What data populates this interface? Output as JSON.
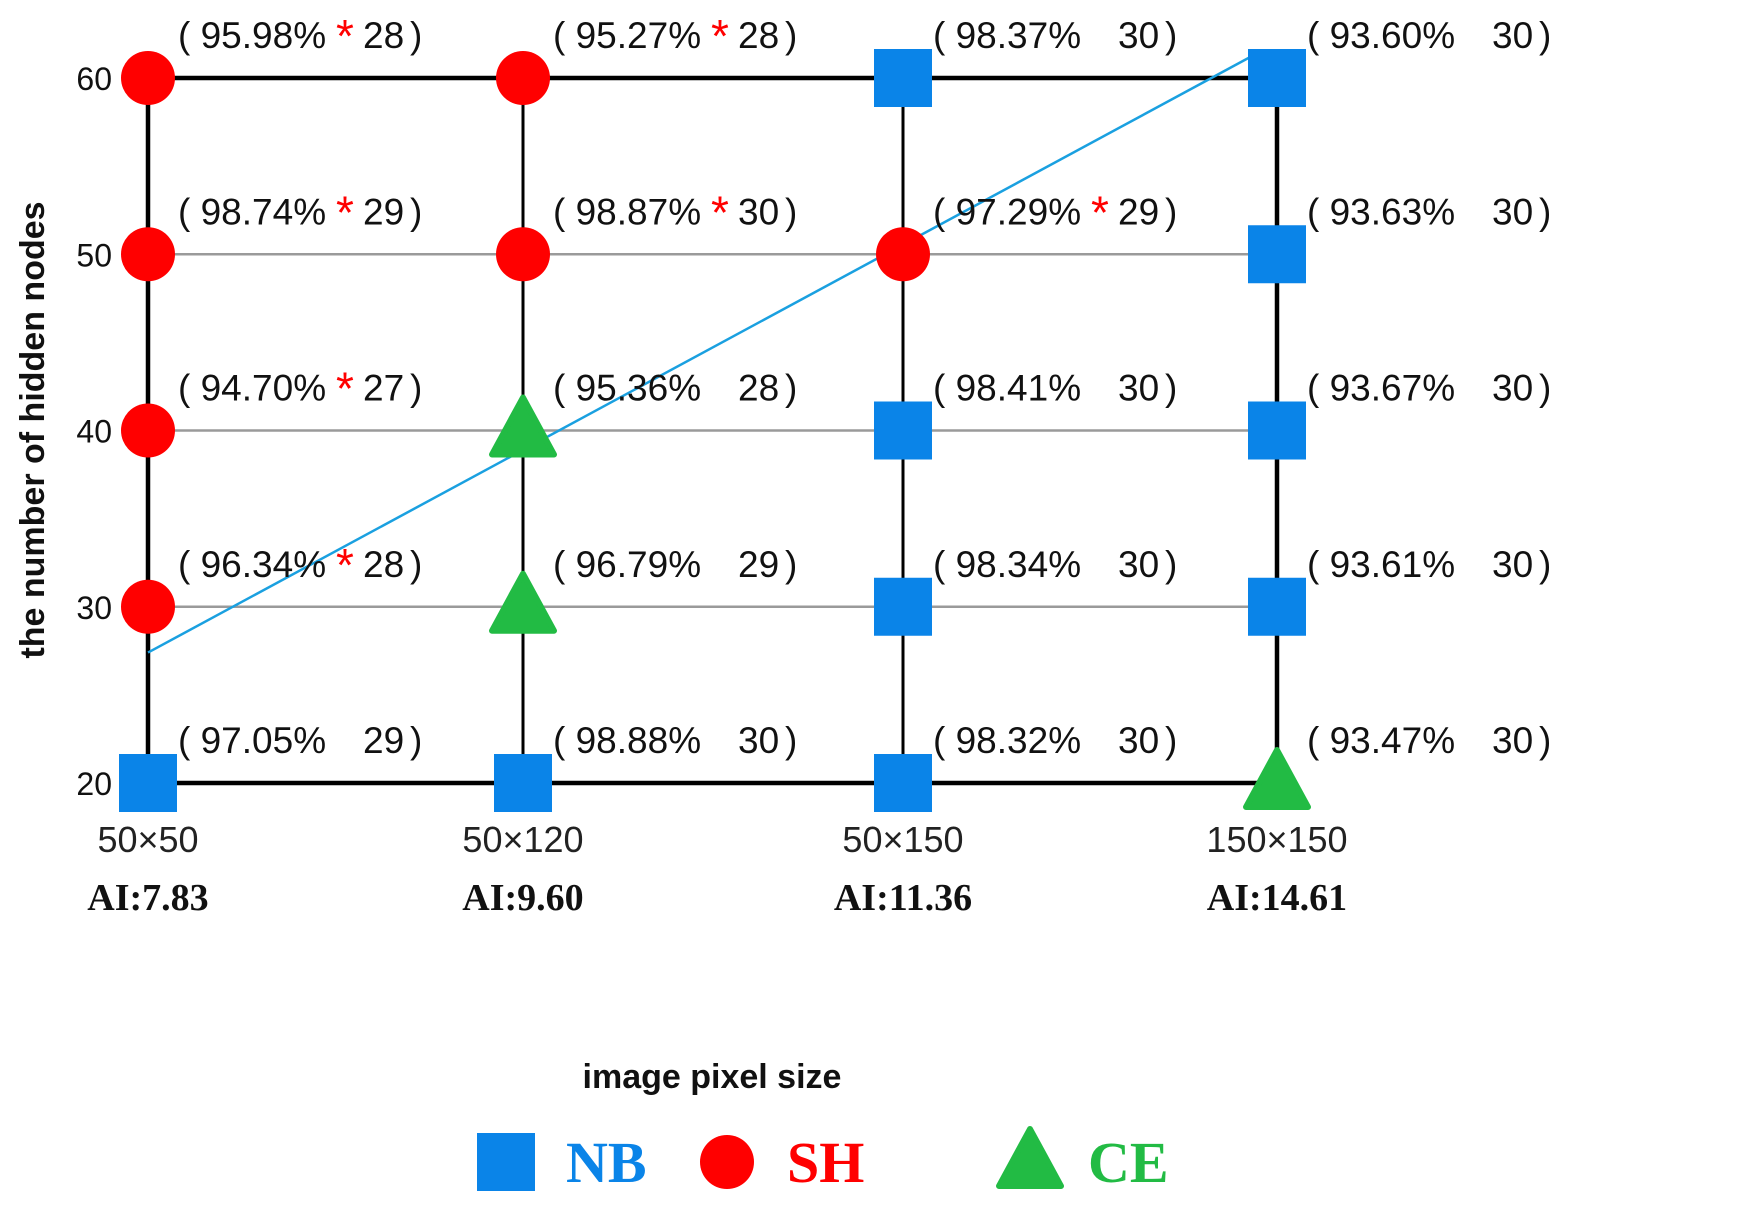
{
  "chart_data": {
    "type": "scatter",
    "title": "",
    "xlabel": "image pixel size",
    "ylabel": "the number of hidden nodes",
    "categories": [
      {
        "size": "50×50",
        "ai": "AI:7.83"
      },
      {
        "size": "50×120",
        "ai": "AI:9.60"
      },
      {
        "size": "50×150",
        "ai": "AI:11.36"
      },
      {
        "size": "150×150",
        "ai": "AI:14.61"
      }
    ],
    "y_ticks": [
      20,
      30,
      40,
      50,
      60
    ],
    "ylim": [
      20,
      60
    ],
    "grid": true,
    "legend_placement": "bottom",
    "legend": [
      {
        "key": "NB",
        "label": "NB",
        "shape": "square",
        "color": "#0a84e8"
      },
      {
        "key": "SH",
        "label": "SH",
        "shape": "circle",
        "color": "#ff0000"
      },
      {
        "key": "CE",
        "label": "CE",
        "shape": "triangle",
        "color": "#22bb44"
      }
    ],
    "points": [
      {
        "x": "50×50",
        "y": 60,
        "method": "SH",
        "accuracy": "95.98%",
        "star": true,
        "num": "28"
      },
      {
        "x": "50×120",
        "y": 60,
        "method": "SH",
        "accuracy": "95.27%",
        "star": true,
        "num": "28"
      },
      {
        "x": "50×150",
        "y": 60,
        "method": "NB",
        "accuracy": "98.37%",
        "star": false,
        "num": "30"
      },
      {
        "x": "150×150",
        "y": 60,
        "method": "NB",
        "accuracy": "93.60%",
        "star": false,
        "num": "30"
      },
      {
        "x": "50×50",
        "y": 50,
        "method": "SH",
        "accuracy": "98.74%",
        "star": true,
        "num": "29"
      },
      {
        "x": "50×120",
        "y": 50,
        "method": "SH",
        "accuracy": "98.87%",
        "star": true,
        "num": "30"
      },
      {
        "x": "50×150",
        "y": 50,
        "method": "SH",
        "accuracy": "97.29%",
        "star": true,
        "num": "29"
      },
      {
        "x": "150×150",
        "y": 50,
        "method": "NB",
        "accuracy": "93.63%",
        "star": false,
        "num": "30"
      },
      {
        "x": "50×50",
        "y": 40,
        "method": "SH",
        "accuracy": "94.70%",
        "star": true,
        "num": "27"
      },
      {
        "x": "50×120",
        "y": 40,
        "method": "CE",
        "accuracy": "95.36%",
        "star": false,
        "num": "28"
      },
      {
        "x": "50×150",
        "y": 40,
        "method": "NB",
        "accuracy": "98.41%",
        "star": false,
        "num": "30"
      },
      {
        "x": "150×150",
        "y": 40,
        "method": "NB",
        "accuracy": "93.67%",
        "star": false,
        "num": "30"
      },
      {
        "x": "50×50",
        "y": 30,
        "method": "SH",
        "accuracy": "96.34%",
        "star": true,
        "num": "28"
      },
      {
        "x": "50×120",
        "y": 30,
        "method": "CE",
        "accuracy": "96.79%",
        "star": false,
        "num": "29"
      },
      {
        "x": "50×150",
        "y": 30,
        "method": "NB",
        "accuracy": "98.34%",
        "star": false,
        "num": "30"
      },
      {
        "x": "150×150",
        "y": 30,
        "method": "NB",
        "accuracy": "93.61%",
        "star": false,
        "num": "30"
      },
      {
        "x": "50×50",
        "y": 20,
        "method": "NB",
        "accuracy": "97.05%",
        "star": false,
        "num": "29"
      },
      {
        "x": "50×120",
        "y": 20,
        "method": "NB",
        "accuracy": "98.88%",
        "star": false,
        "num": "30"
      },
      {
        "x": "50×150",
        "y": 20,
        "method": "NB",
        "accuracy": "98.32%",
        "star": false,
        "num": "30"
      },
      {
        "x": "150×150",
        "y": 20,
        "method": "CE",
        "accuracy": "93.47%",
        "star": false,
        "num": "30"
      }
    ],
    "trend_line": {
      "color": "#1aa0e0",
      "from": {
        "x": 0,
        "y": 27.4
      },
      "to": {
        "x": 2.94,
        "y": 61.2
      }
    }
  }
}
